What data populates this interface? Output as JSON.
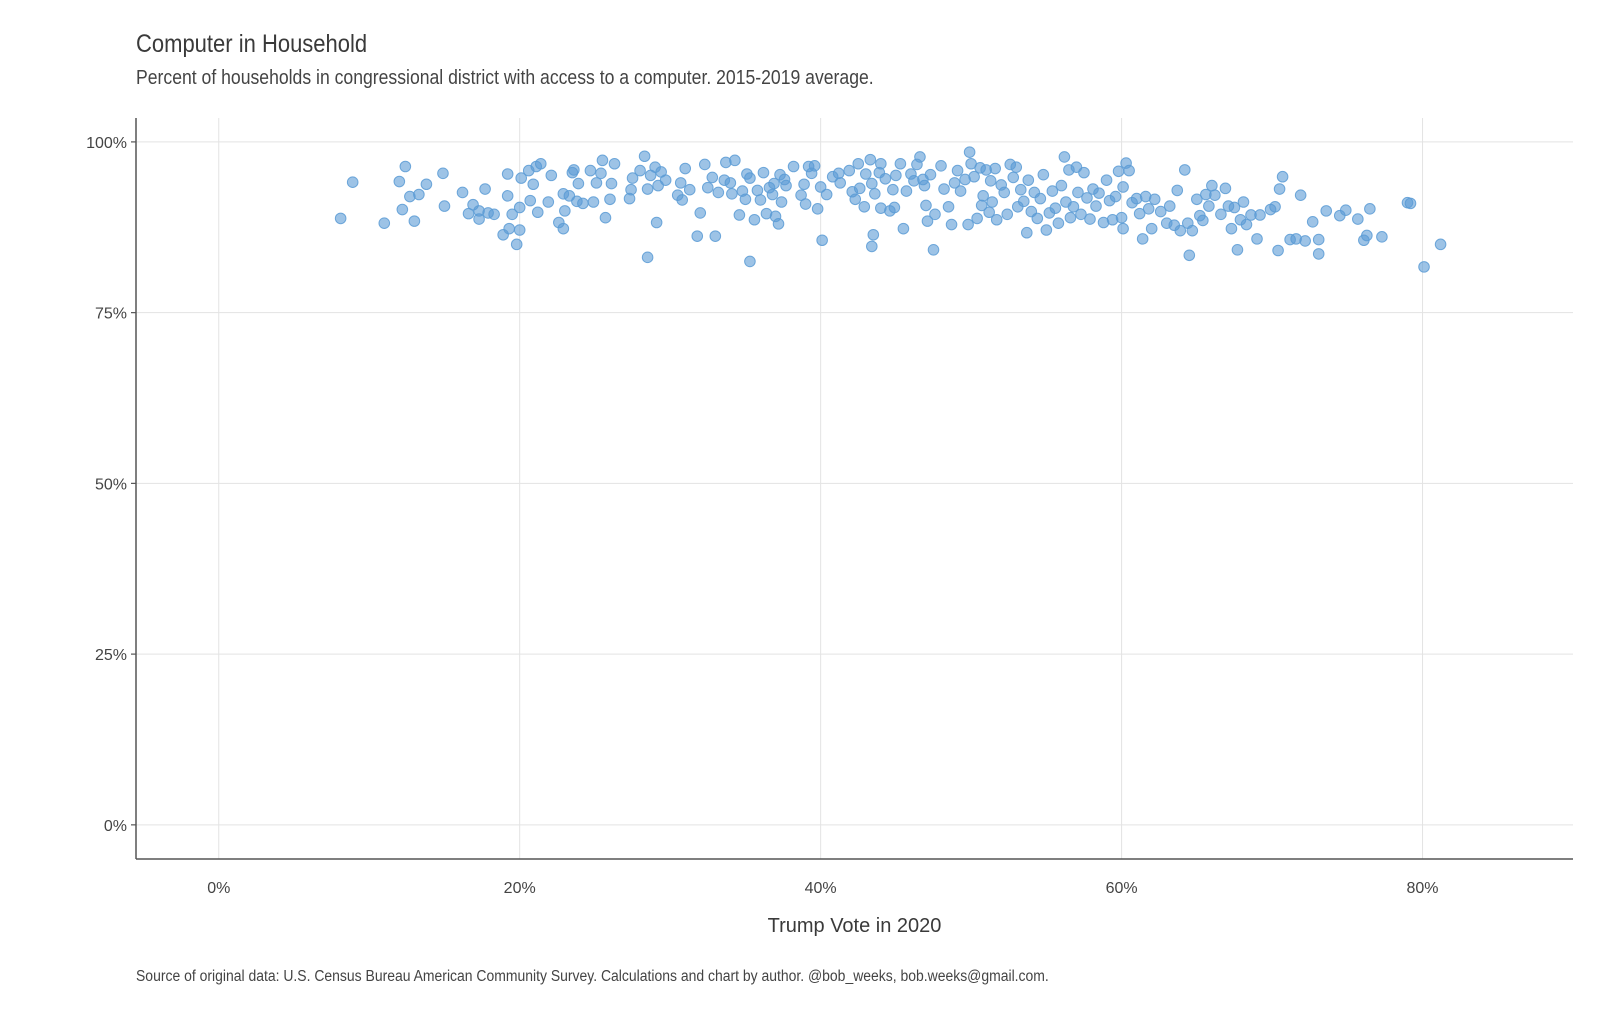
{
  "header": {
    "title": "Computer in Household",
    "subtitle": "Percent of households in congressional district with access to a computer. 2015-2019 average."
  },
  "footer": {
    "caption": "Source of original data: U.S. Census Bureau American Community Survey. Calculations and chart by author. @bob_weeks, bob.weeks@gmail.com."
  },
  "colors": {
    "point": "#5b9bd5",
    "grid": "#e3e3e3",
    "axis": "#555555"
  },
  "chart_data": {
    "type": "scatter",
    "title": "Computer in Household",
    "subtitle": "Percent of households in congressional district with access to a computer. 2015-2019 average.",
    "xlabel": "Trump Vote in 2020",
    "ylabel": "",
    "xlim": [
      -5.5,
      90
    ],
    "ylim": [
      -5,
      103.5
    ],
    "x_ticks": [
      0,
      20,
      40,
      60,
      80
    ],
    "x_tick_labels": [
      "0%",
      "20%",
      "40%",
      "60%",
      "80%"
    ],
    "y_ticks": [
      0,
      25,
      50,
      75,
      100
    ],
    "y_tick_labels": [
      "0%",
      "25%",
      "50%",
      "75%",
      "100%"
    ],
    "grid": true,
    "legend": "none",
    "series": [
      {
        "points": [
          [
            8.1,
            88.8
          ],
          [
            8.9,
            94.1
          ],
          [
            11.0,
            88.1
          ],
          [
            12.0,
            94.2
          ],
          [
            12.2,
            90.1
          ],
          [
            12.4,
            96.4
          ],
          [
            12.7,
            92.0
          ],
          [
            13.0,
            88.4
          ],
          [
            13.3,
            92.3
          ],
          [
            13.8,
            93.8
          ],
          [
            14.9,
            95.4
          ],
          [
            15.0,
            90.6
          ],
          [
            16.2,
            92.6
          ],
          [
            16.6,
            89.5
          ],
          [
            16.9,
            90.8
          ],
          [
            17.3,
            89.9
          ],
          [
            17.3,
            88.7
          ],
          [
            17.7,
            93.1
          ],
          [
            17.9,
            89.6
          ],
          [
            18.3,
            89.4
          ],
          [
            18.9,
            86.4
          ],
          [
            19.2,
            95.3
          ],
          [
            19.2,
            92.1
          ],
          [
            19.3,
            87.3
          ],
          [
            19.5,
            89.4
          ],
          [
            19.8,
            85.0
          ],
          [
            20.0,
            90.4
          ],
          [
            20.0,
            87.1
          ],
          [
            20.1,
            94.7
          ],
          [
            20.6,
            95.8
          ],
          [
            20.7,
            91.4
          ],
          [
            20.9,
            93.8
          ],
          [
            21.1,
            96.4
          ],
          [
            21.2,
            89.7
          ],
          [
            21.4,
            96.8
          ],
          [
            21.9,
            91.2
          ],
          [
            22.1,
            95.1
          ],
          [
            22.6,
            88.2
          ],
          [
            22.9,
            92.4
          ],
          [
            22.9,
            87.3
          ],
          [
            23.0,
            89.9
          ],
          [
            23.3,
            92.1
          ],
          [
            23.5,
            95.5
          ],
          [
            23.8,
            91.3
          ],
          [
            23.6,
            95.9
          ],
          [
            23.9,
            93.9
          ],
          [
            24.2,
            91.0
          ],
          [
            24.7,
            95.8
          ],
          [
            24.9,
            91.2
          ],
          [
            25.1,
            94.0
          ],
          [
            25.4,
            95.4
          ],
          [
            25.5,
            97.3
          ],
          [
            25.7,
            88.9
          ],
          [
            26.0,
            91.6
          ],
          [
            26.1,
            93.9
          ],
          [
            26.3,
            96.8
          ],
          [
            27.3,
            91.7
          ],
          [
            27.4,
            93.0
          ],
          [
            27.5,
            94.7
          ],
          [
            28.0,
            95.8
          ],
          [
            28.3,
            97.9
          ],
          [
            28.5,
            93.1
          ],
          [
            28.5,
            83.1
          ],
          [
            28.7,
            95.1
          ],
          [
            29.0,
            96.3
          ],
          [
            29.2,
            93.6
          ],
          [
            29.4,
            95.6
          ],
          [
            29.7,
            94.4
          ],
          [
            29.1,
            88.2
          ],
          [
            30.5,
            92.2
          ],
          [
            30.7,
            94.0
          ],
          [
            30.8,
            91.5
          ],
          [
            31.0,
            96.1
          ],
          [
            31.3,
            93.0
          ],
          [
            31.8,
            86.2
          ],
          [
            32.0,
            89.6
          ],
          [
            32.3,
            96.7
          ],
          [
            32.5,
            93.3
          ],
          [
            32.8,
            94.8
          ],
          [
            33.0,
            86.2
          ],
          [
            33.2,
            92.6
          ],
          [
            33.6,
            94.4
          ],
          [
            33.7,
            97.0
          ],
          [
            34.0,
            94.0
          ],
          [
            34.1,
            92.4
          ],
          [
            34.3,
            97.3
          ],
          [
            34.6,
            89.3
          ],
          [
            34.8,
            92.8
          ],
          [
            35.0,
            91.6
          ],
          [
            35.1,
            95.3
          ],
          [
            35.3,
            94.7
          ],
          [
            35.3,
            82.5
          ],
          [
            35.6,
            88.6
          ],
          [
            35.8,
            92.9
          ],
          [
            36.0,
            91.5
          ],
          [
            36.2,
            95.5
          ],
          [
            36.4,
            89.5
          ],
          [
            36.6,
            93.3
          ],
          [
            36.8,
            92.3
          ],
          [
            36.9,
            93.9
          ],
          [
            37.0,
            89.1
          ],
          [
            37.2,
            88.0
          ],
          [
            37.3,
            95.2
          ],
          [
            37.4,
            91.2
          ],
          [
            37.6,
            94.5
          ],
          [
            37.7,
            93.6
          ],
          [
            38.2,
            96.4
          ],
          [
            38.7,
            92.2
          ],
          [
            38.9,
            93.8
          ],
          [
            39.0,
            90.9
          ],
          [
            39.2,
            96.4
          ],
          [
            39.4,
            95.4
          ],
          [
            39.6,
            96.5
          ],
          [
            39.8,
            90.2
          ],
          [
            40.0,
            93.4
          ],
          [
            40.4,
            92.3
          ],
          [
            40.1,
            85.6
          ],
          [
            40.8,
            94.9
          ],
          [
            41.2,
            95.4
          ],
          [
            41.3,
            94.0
          ],
          [
            41.9,
            95.8
          ],
          [
            42.1,
            92.7
          ],
          [
            42.3,
            91.6
          ],
          [
            42.5,
            96.8
          ],
          [
            42.6,
            93.2
          ],
          [
            42.9,
            90.5
          ],
          [
            43.0,
            95.3
          ],
          [
            43.3,
            97.4
          ],
          [
            43.4,
            93.9
          ],
          [
            43.5,
            86.4
          ],
          [
            43.4,
            84.7
          ],
          [
            43.6,
            92.4
          ],
          [
            43.9,
            95.5
          ],
          [
            44.0,
            96.8
          ],
          [
            44.0,
            90.3
          ],
          [
            44.3,
            94.6
          ],
          [
            44.6,
            89.9
          ],
          [
            44.8,
            93.0
          ],
          [
            44.9,
            90.4
          ],
          [
            45.0,
            95.1
          ],
          [
            45.3,
            96.8
          ],
          [
            45.5,
            87.3
          ],
          [
            45.7,
            92.8
          ],
          [
            46.0,
            95.3
          ],
          [
            46.2,
            94.3
          ],
          [
            46.4,
            96.7
          ],
          [
            46.6,
            97.8
          ],
          [
            46.8,
            94.5
          ],
          [
            46.9,
            93.6
          ],
          [
            47.0,
            90.7
          ],
          [
            47.1,
            88.4
          ],
          [
            47.3,
            95.2
          ],
          [
            47.5,
            84.2
          ],
          [
            47.6,
            89.4
          ],
          [
            48.0,
            96.5
          ],
          [
            48.2,
            93.1
          ],
          [
            48.5,
            90.5
          ],
          [
            48.7,
            87.9
          ],
          [
            48.9,
            94.0
          ],
          [
            49.1,
            95.8
          ],
          [
            49.3,
            92.8
          ],
          [
            49.6,
            94.5
          ],
          [
            49.8,
            87.9
          ],
          [
            49.9,
            98.5
          ],
          [
            50.0,
            96.8
          ],
          [
            50.2,
            94.9
          ],
          [
            50.4,
            88.8
          ],
          [
            50.6,
            96.2
          ],
          [
            50.7,
            90.7
          ],
          [
            50.8,
            92.1
          ],
          [
            51.0,
            95.9
          ],
          [
            51.2,
            89.7
          ],
          [
            51.3,
            94.3
          ],
          [
            51.4,
            91.2
          ],
          [
            51.6,
            96.1
          ],
          [
            51.7,
            88.6
          ],
          [
            52.0,
            93.7
          ],
          [
            52.2,
            92.6
          ],
          [
            52.4,
            89.4
          ],
          [
            52.6,
            96.7
          ],
          [
            52.8,
            94.8
          ],
          [
            53.0,
            96.3
          ],
          [
            53.1,
            90.5
          ],
          [
            53.3,
            93.0
          ],
          [
            53.5,
            91.3
          ],
          [
            53.7,
            86.7
          ],
          [
            53.8,
            94.4
          ],
          [
            54.0,
            89.8
          ],
          [
            54.2,
            92.6
          ],
          [
            54.4,
            88.8
          ],
          [
            54.6,
            91.7
          ],
          [
            54.8,
            95.2
          ],
          [
            55.0,
            87.1
          ],
          [
            55.2,
            89.6
          ],
          [
            55.4,
            92.8
          ],
          [
            55.6,
            90.3
          ],
          [
            55.8,
            88.1
          ],
          [
            56.0,
            93.6
          ],
          [
            56.2,
            97.8
          ],
          [
            56.3,
            91.2
          ],
          [
            56.5,
            95.9
          ],
          [
            56.6,
            88.9
          ],
          [
            56.8,
            90.5
          ],
          [
            57.0,
            96.3
          ],
          [
            57.1,
            92.6
          ],
          [
            57.3,
            89.4
          ],
          [
            57.5,
            95.5
          ],
          [
            57.7,
            91.8
          ],
          [
            57.9,
            88.7
          ],
          [
            58.1,
            93.1
          ],
          [
            58.3,
            90.6
          ],
          [
            58.5,
            92.5
          ],
          [
            58.8,
            88.2
          ],
          [
            59.0,
            94.4
          ],
          [
            59.2,
            91.4
          ],
          [
            59.4,
            88.6
          ],
          [
            59.6,
            92.0
          ],
          [
            59.8,
            95.7
          ],
          [
            60.0,
            88.9
          ],
          [
            60.1,
            93.4
          ],
          [
            60.1,
            87.3
          ],
          [
            60.3,
            96.9
          ],
          [
            60.5,
            95.8
          ],
          [
            60.7,
            91.1
          ],
          [
            61.0,
            91.7
          ],
          [
            61.2,
            89.5
          ],
          [
            61.4,
            85.8
          ],
          [
            61.6,
            92.0
          ],
          [
            61.8,
            90.2
          ],
          [
            62.0,
            87.3
          ],
          [
            62.2,
            91.6
          ],
          [
            62.6,
            89.8
          ],
          [
            63.0,
            88.1
          ],
          [
            63.2,
            90.6
          ],
          [
            63.5,
            87.8
          ],
          [
            63.7,
            92.9
          ],
          [
            63.9,
            87.0
          ],
          [
            64.2,
            95.9
          ],
          [
            64.4,
            88.1
          ],
          [
            64.5,
            83.4
          ],
          [
            64.7,
            87.0
          ],
          [
            65.0,
            91.6
          ],
          [
            65.2,
            89.2
          ],
          [
            65.4,
            88.5
          ],
          [
            65.6,
            92.3
          ],
          [
            65.8,
            90.6
          ],
          [
            66.0,
            93.6
          ],
          [
            66.2,
            92.2
          ],
          [
            66.6,
            89.4
          ],
          [
            66.9,
            93.2
          ],
          [
            67.1,
            90.6
          ],
          [
            67.3,
            87.3
          ],
          [
            67.5,
            90.4
          ],
          [
            67.7,
            84.2
          ],
          [
            67.9,
            88.6
          ],
          [
            68.1,
            91.2
          ],
          [
            68.3,
            87.9
          ],
          [
            68.6,
            89.3
          ],
          [
            69.0,
            85.8
          ],
          [
            69.2,
            89.3
          ],
          [
            69.9,
            90.1
          ],
          [
            70.2,
            90.5
          ],
          [
            70.4,
            84.1
          ],
          [
            70.7,
            94.9
          ],
          [
            70.5,
            93.1
          ],
          [
            71.2,
            85.7
          ],
          [
            71.6,
            85.8
          ],
          [
            71.9,
            92.2
          ],
          [
            72.2,
            85.5
          ],
          [
            72.7,
            88.3
          ],
          [
            73.1,
            85.7
          ],
          [
            73.1,
            83.6
          ],
          [
            73.6,
            89.9
          ],
          [
            74.5,
            89.2
          ],
          [
            74.9,
            90.0
          ],
          [
            75.7,
            88.7
          ],
          [
            76.1,
            85.6
          ],
          [
            76.3,
            86.3
          ],
          [
            76.5,
            90.2
          ],
          [
            77.3,
            86.1
          ],
          [
            79.0,
            91.1
          ],
          [
            79.2,
            91.0
          ],
          [
            80.1,
            81.7
          ],
          [
            81.2,
            85.0
          ]
        ]
      }
    ]
  }
}
